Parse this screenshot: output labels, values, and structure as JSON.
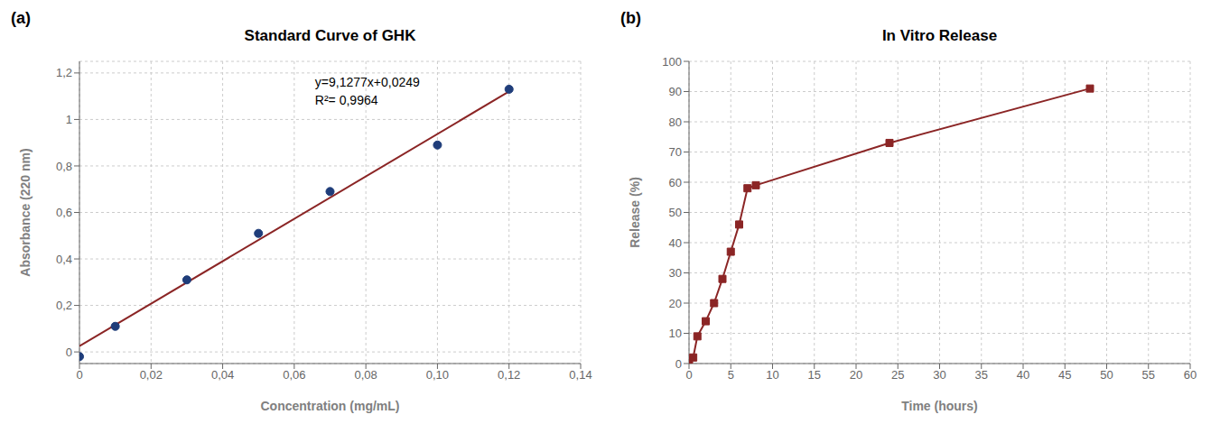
{
  "chart_data": [
    {
      "type": "scatter",
      "label": "(a)",
      "title": "Standard Curve of GHK",
      "xlabel": "Concentration (mg/mL)",
      "ylabel": "Absorbance (220 nm)",
      "xlim": [
        0,
        0.14
      ],
      "ylim": [
        -0.05,
        1.25
      ],
      "xticks": [
        0,
        {
          "value": 0.02,
          "label": "0,02"
        },
        {
          "value": 0.04,
          "label": "0,04"
        },
        {
          "value": 0.06,
          "label": "0,06"
        },
        {
          "value": 0.08,
          "label": "0,08"
        },
        {
          "value": 0.1,
          "label": "0,10"
        },
        {
          "value": 0.12,
          "label": "0,12"
        },
        {
          "value": 0.14,
          "label": "0,14"
        }
      ],
      "yticks": [
        0,
        {
          "value": 0.2,
          "label": "0,2"
        },
        {
          "value": 0.4,
          "label": "0,4"
        },
        {
          "value": 0.6,
          "label": "0,6"
        },
        {
          "value": 0.8,
          "label": "0,8"
        },
        1,
        {
          "value": 1.2,
          "label": "1,2"
        }
      ],
      "grid": true,
      "annotations": [
        "y=9,1277x+0,0249",
        "R²= 0,9964"
      ],
      "series": [
        {
          "type": "line",
          "color": "#8B2525",
          "x": [
            0.0,
            0.12
          ],
          "values": [
            0.0249,
            1.120224
          ]
        },
        {
          "type": "scatter",
          "color": "#1F3D7A",
          "marker": "circle",
          "x": [
            0.0,
            0.01,
            0.03,
            0.05,
            0.07,
            0.1,
            0.12
          ],
          "values": [
            -0.02,
            0.11,
            0.31,
            0.51,
            0.69,
            0.89,
            1.13
          ]
        }
      ]
    },
    {
      "type": "line",
      "label": "(b)",
      "title": "In Vitro Release",
      "xlabel": "Time (hours)",
      "ylabel": "Release (%)",
      "xlim": [
        0,
        60
      ],
      "ylim": [
        0,
        100
      ],
      "xticks": [
        0,
        5,
        10,
        15,
        20,
        25,
        30,
        35,
        40,
        45,
        50,
        55,
        60
      ],
      "yticks": [
        0,
        10,
        20,
        30,
        40,
        50,
        60,
        70,
        80,
        90,
        100
      ],
      "grid": true,
      "series": [
        {
          "type": "line",
          "color": "#8B2525",
          "marker": "square",
          "x": [
            0,
            0.5,
            1,
            2,
            3,
            4,
            5,
            6,
            7,
            8,
            24,
            48
          ],
          "values": [
            1,
            2,
            9,
            14,
            20,
            28,
            37,
            46,
            58,
            59,
            73,
            91
          ]
        }
      ]
    }
  ]
}
